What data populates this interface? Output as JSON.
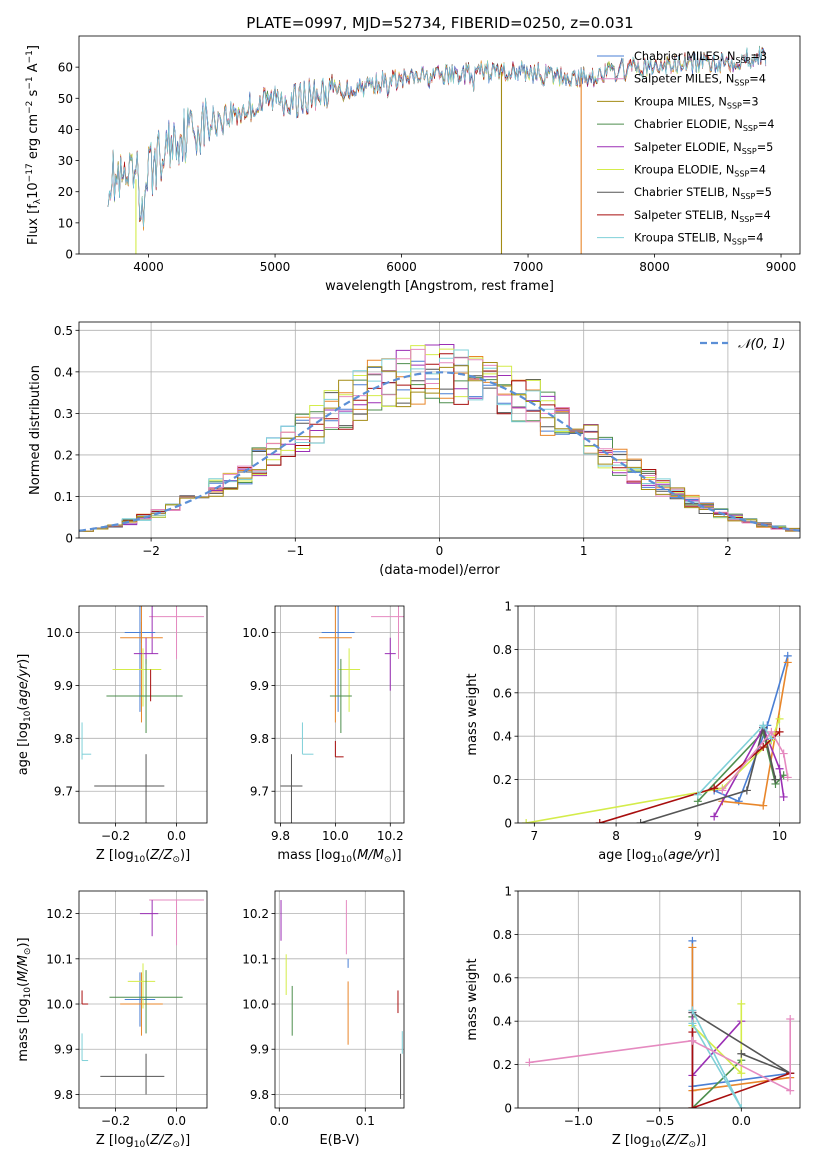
{
  "colors": {
    "c0": "#4a7fd4",
    "c1": "#e8862a",
    "c2": "#a38b14",
    "c3": "#4d8e4d",
    "c4": "#9b2fb5",
    "c5": "#d4ec4a",
    "c6": "#555555",
    "c7": "#a80e0e",
    "c8": "#7fd0d8",
    "c9": "#e58ac0"
  },
  "chart_data": [
    {
      "id": "spectrum",
      "type": "line",
      "title": "PLATE=0997, MJD=52734, FIBERID=0250, z=0.031",
      "xlabel": "wavelength [Angstrom, rest frame]",
      "ylabel": "Flux [f_λ 10^-17 erg cm^-2 s^-1 A^-1]",
      "xlim": [
        3450,
        9150
      ],
      "ylim": [
        0,
        70
      ],
      "xticks": [
        4000,
        5000,
        6000,
        7000,
        8000,
        9000
      ],
      "yticks": [
        0,
        10,
        20,
        30,
        40,
        50,
        60
      ],
      "legend_position": "top-right",
      "series": [
        {
          "name": "Chabrier MILES, N_SSP=3",
          "color": "c0"
        },
        {
          "name": "Salpeter MILES, N_SSP=4",
          "color": "c9"
        },
        {
          "name": "Kroupa MILES, N_SSP=3",
          "color": "c2"
        },
        {
          "name": "Chabrier ELODIE, N_SSP=4",
          "color": "c3"
        },
        {
          "name": "Salpeter ELODIE, N_SSP=5",
          "color": "c4"
        },
        {
          "name": "Kroupa ELODIE, N_SSP=4",
          "color": "c5"
        },
        {
          "name": "Chabrier STELIB, N_SSP=5",
          "color": "c6"
        },
        {
          "name": "Salpeter STELIB, N_SSP=4",
          "color": "c7"
        },
        {
          "name": "Kroupa STELIB, N_SSP=4",
          "color": "c8"
        }
      ],
      "continuum": {
        "x": [
          3700,
          3800,
          3900,
          4000,
          4100,
          4200,
          4300,
          4400,
          4600,
          4800,
          5000,
          5200,
          5400,
          5600,
          5800,
          6000,
          6200,
          6400,
          6600,
          6800,
          7000,
          7200,
          7400,
          7600,
          7800,
          8000,
          8200,
          8400,
          8600,
          8800,
          8900
        ],
        "y": [
          25,
          22,
          24,
          26,
          32,
          37,
          39,
          41,
          44,
          47,
          50,
          50,
          52,
          53,
          55,
          56,
          57,
          57.5,
          58.5,
          58.5,
          58.5,
          57,
          56.5,
          58,
          59.5,
          60,
          61,
          61.5,
          62,
          63.5,
          63
        ]
      }
    },
    {
      "id": "residuals",
      "type": "histogram",
      "xlabel": "(data-model)/error",
      "ylabel": "Normed distribution",
      "xlim": [
        -2.5,
        2.5
      ],
      "ylim": [
        0,
        0.52
      ],
      "xticks": [
        -2,
        -1,
        0,
        1,
        2
      ],
      "yticks": [
        0.0,
        0.1,
        0.2,
        0.3,
        0.4,
        0.5
      ],
      "legend": "𝒩(0, 1)",
      "legend_position": "top-right",
      "bin_width": 0.1,
      "bin_start": -2.5,
      "reference_curve": "gaussian N(0,1)"
    },
    {
      "id": "age_vs_Z",
      "type": "scatter",
      "xlabel": "Z [log10(Z/Z⊙)]",
      "ylabel": "age  [log10(age/yr)]",
      "xlim": [
        -0.32,
        0.1
      ],
      "ylim": [
        9.64,
        10.05
      ],
      "xticks": [
        -0.2,
        0.0
      ],
      "xticklabels": [
        "−0.2",
        "0.0"
      ],
      "yticks": [
        9.7,
        9.8,
        9.9,
        10.0
      ],
      "yticklabels": [
        "9.7",
        "9.8",
        "9.9",
        "10.0"
      ],
      "points": [
        {
          "c": "c9",
          "x": 0.0,
          "y": 10.03,
          "ex": [
            -0.09,
            0.09
          ],
          "ey": [
            -0.08,
            0.05
          ]
        },
        {
          "c": "c4",
          "x": -0.08,
          "y": 10.02,
          "ex": [
            0,
            0
          ],
          "ey": [
            -0.06,
            0.04
          ]
        },
        {
          "c": "c0",
          "x": -0.12,
          "y": 10.0,
          "ex": [
            -0.05,
            0.05
          ],
          "ey": [
            -0.15,
            0.07
          ]
        },
        {
          "c": "c2",
          "x": -0.115,
          "y": 10.0,
          "ex": [
            0,
            0
          ],
          "ey": [
            -0.02,
            0.02
          ]
        },
        {
          "c": "c1",
          "x": -0.115,
          "y": 9.99,
          "ex": [
            -0.07,
            0.07
          ],
          "ey": [
            -0.16,
            0.07
          ]
        },
        {
          "c": "c4",
          "x": -0.1,
          "y": 9.96,
          "ex": [
            -0.04,
            0.04
          ],
          "ey": [
            -0.02,
            0.03
          ]
        },
        {
          "c": "c5",
          "x": -0.11,
          "y": 9.93,
          "ex": [
            -0.1,
            0.06
          ],
          "ey": [
            -0.07,
            0.04
          ]
        },
        {
          "c": "c3",
          "x": -0.1,
          "y": 9.88,
          "ex": [
            -0.13,
            0.12
          ],
          "ey": [
            -0.07,
            0.07
          ]
        },
        {
          "c": "c7",
          "x": -0.085,
          "y": 9.9,
          "ex": [
            0,
            0
          ],
          "ey": [
            -0.03,
            0.03
          ]
        },
        {
          "c": "c8",
          "x": -0.31,
          "y": 9.77,
          "ex": [
            0,
            0.03
          ],
          "ey": [
            -0.01,
            0.06
          ]
        },
        {
          "c": "c6",
          "x": -0.1,
          "y": 9.71,
          "ex": [
            -0.17,
            0.06
          ],
          "ey": [
            -0.07,
            0.06
          ]
        }
      ]
    },
    {
      "id": "age_vs_mass",
      "type": "scatter",
      "xlabel": "mass [log10(M/M⊙)]",
      "xlim": [
        9.78,
        10.25
      ],
      "ylim": [
        9.64,
        10.05
      ],
      "xticks": [
        9.8,
        10.0,
        10.2
      ],
      "xticklabels": [
        "9.8",
        "10.0",
        "10.2"
      ],
      "yticks": [
        9.7,
        9.8,
        9.9,
        10.0
      ],
      "yticklabels": [
        "9.7",
        "9.8",
        "9.9",
        "10.0"
      ],
      "points": [
        {
          "c": "c9",
          "x": 10.23,
          "y": 10.03,
          "ex": [
            -0.1,
            0.04
          ],
          "ey": [
            -0.08,
            0.05
          ]
        },
        {
          "c": "c4",
          "x": 10.2,
          "y": 9.96,
          "ex": [
            -0.02,
            0.02
          ],
          "ey": [
            -0.07,
            0.03
          ]
        },
        {
          "c": "c0",
          "x": 10.01,
          "y": 10.0,
          "ex": [
            -0.06,
            0.06
          ],
          "ey": [
            -0.15,
            0.07
          ]
        },
        {
          "c": "c1",
          "x": 10.0,
          "y": 9.99,
          "ex": [
            -0.06,
            0.06
          ],
          "ey": [
            -0.16,
            0.07
          ]
        },
        {
          "c": "c5",
          "x": 10.05,
          "y": 9.93,
          "ex": [
            -0.04,
            0.04
          ],
          "ey": [
            -0.08,
            0.04
          ]
        },
        {
          "c": "c3",
          "x": 10.02,
          "y": 9.88,
          "ex": [
            -0.04,
            0.04
          ],
          "ey": [
            -0.07,
            0.07
          ]
        },
        {
          "c": "c8",
          "x": 9.88,
          "y": 9.77,
          "ex": [
            0,
            0.04
          ],
          "ey": [
            0,
            0.06
          ]
        },
        {
          "c": "c7",
          "x": 10.0,
          "y": 9.765,
          "ex": [
            0,
            0.03
          ],
          "ey": [
            0,
            0.03
          ]
        },
        {
          "c": "c6",
          "x": 9.84,
          "y": 9.71,
          "ex": [
            -0.04,
            0.04
          ],
          "ey": [
            -0.07,
            0.06
          ]
        }
      ]
    },
    {
      "id": "weight_vs_age",
      "type": "line",
      "xlabel": "age  [log10(age/yr)]",
      "ylabel": "mass weight",
      "xlim": [
        6.8,
        10.25
      ],
      "ylim": [
        0,
        1.0
      ],
      "xticks": [
        7,
        8,
        9,
        10
      ],
      "yticks": [
        0.0,
        0.2,
        0.4,
        0.6,
        0.8,
        1.0
      ],
      "series": [
        {
          "c": "c0",
          "x": [
            9.2,
            9.5,
            9.85,
            10.1
          ],
          "y": [
            0.15,
            0.1,
            0.45,
            0.77
          ]
        },
        {
          "c": "c1",
          "x": [
            9.3,
            9.8,
            10.1
          ],
          "y": [
            0.1,
            0.08,
            0.74
          ]
        },
        {
          "c": "c3",
          "x": [
            9.0,
            9.8,
            9.95,
            10.05
          ],
          "y": [
            0.1,
            0.42,
            0.18,
            0.22
          ]
        },
        {
          "c": "c4",
          "x": [
            9.2,
            9.8,
            10.0,
            10.05
          ],
          "y": [
            0.03,
            0.44,
            0.25,
            0.12
          ]
        },
        {
          "c": "c5",
          "x": [
            6.9,
            9.3,
            9.9,
            10.0
          ],
          "y": [
            0.0,
            0.16,
            0.38,
            0.48
          ]
        },
        {
          "c": "c6",
          "x": [
            8.3,
            9.6,
            9.8,
            9.95
          ],
          "y": [
            0.0,
            0.15,
            0.44,
            0.2
          ]
        },
        {
          "c": "c7",
          "x": [
            7.8,
            9.2,
            9.8,
            10.0
          ],
          "y": [
            0.0,
            0.16,
            0.35,
            0.42
          ]
        },
        {
          "c": "c8",
          "x": [
            9.0,
            9.8,
            9.9
          ],
          "y": [
            0.13,
            0.45,
            0.39
          ]
        },
        {
          "c": "c9",
          "x": [
            9.3,
            9.9,
            10.05,
            10.1
          ],
          "y": [
            0.15,
            0.42,
            0.32,
            0.21
          ]
        }
      ]
    },
    {
      "id": "mass_vs_Z",
      "type": "scatter",
      "xlabel": "Z [log10(Z/Z⊙)]",
      "ylabel": "mass [log10(M/M⊙)]",
      "xlim": [
        -0.32,
        0.1
      ],
      "ylim": [
        9.77,
        10.25
      ],
      "xticks": [
        -0.2,
        0.0
      ],
      "xticklabels": [
        "−0.2",
        "0.0"
      ],
      "yticks": [
        9.8,
        9.9,
        10.0,
        10.1,
        10.2
      ],
      "yticklabels": [
        "9.8",
        "9.9",
        "10.0",
        "10.1",
        "10.2"
      ],
      "points": [
        {
          "c": "c9",
          "x": 0.0,
          "y": 10.23,
          "ex": [
            -0.09,
            0.09
          ],
          "ey": [
            -0.1,
            0.0
          ]
        },
        {
          "c": "c4",
          "x": -0.08,
          "y": 10.2,
          "ex": [
            -0.04,
            0.02
          ],
          "ey": [
            -0.05,
            0.03
          ]
        },
        {
          "c": "c0",
          "x": -0.12,
          "y": 10.01,
          "ex": [
            -0.05,
            0.05
          ],
          "ey": [
            -0.06,
            0.06
          ]
        },
        {
          "c": "c1",
          "x": -0.115,
          "y": 10.0,
          "ex": [
            -0.07,
            0.07
          ],
          "ey": [
            -0.07,
            0.07
          ]
        },
        {
          "c": "c5",
          "x": -0.11,
          "y": 10.05,
          "ex": [
            -0.05,
            0.04
          ],
          "ey": [
            -0.06,
            0.04
          ]
        },
        {
          "c": "c3",
          "x": -0.1,
          "y": 10.015,
          "ex": [
            -0.12,
            0.12
          ],
          "ey": [
            -0.08,
            0.06
          ]
        },
        {
          "c": "c7",
          "x": -0.31,
          "y": 10.0,
          "ex": [
            0,
            0.02
          ],
          "ey": [
            0,
            0.03
          ]
        },
        {
          "c": "c8",
          "x": -0.31,
          "y": 9.875,
          "ex": [
            0,
            0.02
          ],
          "ey": [
            0,
            0.06
          ]
        },
        {
          "c": "c6",
          "x": -0.1,
          "y": 9.84,
          "ex": [
            -0.15,
            0.06
          ],
          "ey": [
            -0.04,
            0.05
          ]
        }
      ]
    },
    {
      "id": "mass_vs_EBV",
      "type": "scatter",
      "xlabel": "E(B-V)",
      "xlim": [
        -0.005,
        0.145
      ],
      "ylim": [
        9.77,
        10.25
      ],
      "xticks": [
        0.0,
        0.1
      ],
      "xticklabels": [
        "0.0",
        "0.1"
      ],
      "yticks": [
        9.8,
        9.9,
        10.0,
        10.1,
        10.2
      ],
      "yticklabels": [
        "9.8",
        "9.9",
        "10.0",
        "10.1",
        "10.2"
      ],
      "points": [
        {
          "c": "c4",
          "x": 0.002,
          "y": 10.2,
          "ex": [
            0,
            0
          ],
          "ey": [
            -0.06,
            0.03
          ]
        },
        {
          "c": "c5",
          "x": 0.008,
          "y": 10.06,
          "ex": [
            0,
            0
          ],
          "ey": [
            -0.04,
            0.05
          ]
        },
        {
          "c": "c3",
          "x": 0.015,
          "y": 9.99,
          "ex": [
            0,
            0
          ],
          "ey": [
            -0.06,
            0.05
          ]
        },
        {
          "c": "c9",
          "x": 0.078,
          "y": 10.18,
          "ex": [
            0,
            0
          ],
          "ey": [
            -0.07,
            0.05
          ]
        },
        {
          "c": "c0",
          "x": 0.08,
          "y": 10.09,
          "ex": [
            0,
            0
          ],
          "ey": [
            -0.01,
            0.01
          ]
        },
        {
          "c": "c1",
          "x": 0.08,
          "y": 9.98,
          "ex": [
            0,
            0
          ],
          "ey": [
            -0.07,
            0.07
          ]
        },
        {
          "c": "c7",
          "x": 0.138,
          "y": 10.0,
          "ex": [
            0,
            0
          ],
          "ey": [
            -0.02,
            0.03
          ]
        },
        {
          "c": "c6",
          "x": 0.141,
          "y": 9.84,
          "ex": [
            0,
            0
          ],
          "ey": [
            -0.05,
            0.05
          ]
        },
        {
          "c": "c8",
          "x": 0.143,
          "y": 9.92,
          "ex": [
            0,
            0
          ],
          "ey": [
            -0.03,
            0.02
          ]
        }
      ]
    },
    {
      "id": "weight_vs_Z",
      "type": "line",
      "xlabel": "Z [log10(Z/Z⊙)]",
      "ylabel": "mass weight",
      "xlim": [
        -1.37,
        0.36
      ],
      "ylim": [
        0,
        1.0
      ],
      "xticks": [
        -1.0,
        -0.5,
        0.0
      ],
      "xticklabels": [
        "−1.0",
        "−0.5",
        "0.0"
      ],
      "yticks": [
        0.0,
        0.2,
        0.4,
        0.6,
        0.8,
        1.0
      ],
      "series": [
        {
          "c": "c0",
          "x": [
            -0.3,
            -0.3,
            0.3
          ],
          "y": [
            0.77,
            0.1,
            0.16
          ]
        },
        {
          "c": "c1",
          "x": [
            -0.3,
            -0.3,
            0.3
          ],
          "y": [
            0.74,
            0.08,
            0.14
          ]
        },
        {
          "c": "c3",
          "x": [
            -0.3,
            -0.3,
            0.0
          ],
          "y": [
            0.42,
            0.0,
            0.22
          ]
        },
        {
          "c": "c4",
          "x": [
            -0.3,
            -0.3,
            0.0
          ],
          "y": [
            0.44,
            0.15,
            0.4
          ]
        },
        {
          "c": "c5",
          "x": [
            -0.3,
            0.0,
            0.0
          ],
          "y": [
            0.38,
            0.16,
            0.48
          ]
        },
        {
          "c": "c6",
          "x": [
            -0.3,
            0.3,
            0.0
          ],
          "y": [
            0.44,
            0.16,
            0.25
          ]
        },
        {
          "c": "c7",
          "x": [
            -0.3,
            -0.3,
            0.3
          ],
          "y": [
            0.35,
            0.0,
            0.16
          ]
        },
        {
          "c": "c8",
          "x": [
            -0.3,
            0.0,
            -0.3
          ],
          "y": [
            0.45,
            0.0,
            0.39
          ]
        },
        {
          "c": "c9",
          "x": [
            -1.3,
            -0.3,
            0.3,
            0.3
          ],
          "y": [
            0.21,
            0.31,
            0.08,
            0.41
          ]
        }
      ]
    }
  ]
}
